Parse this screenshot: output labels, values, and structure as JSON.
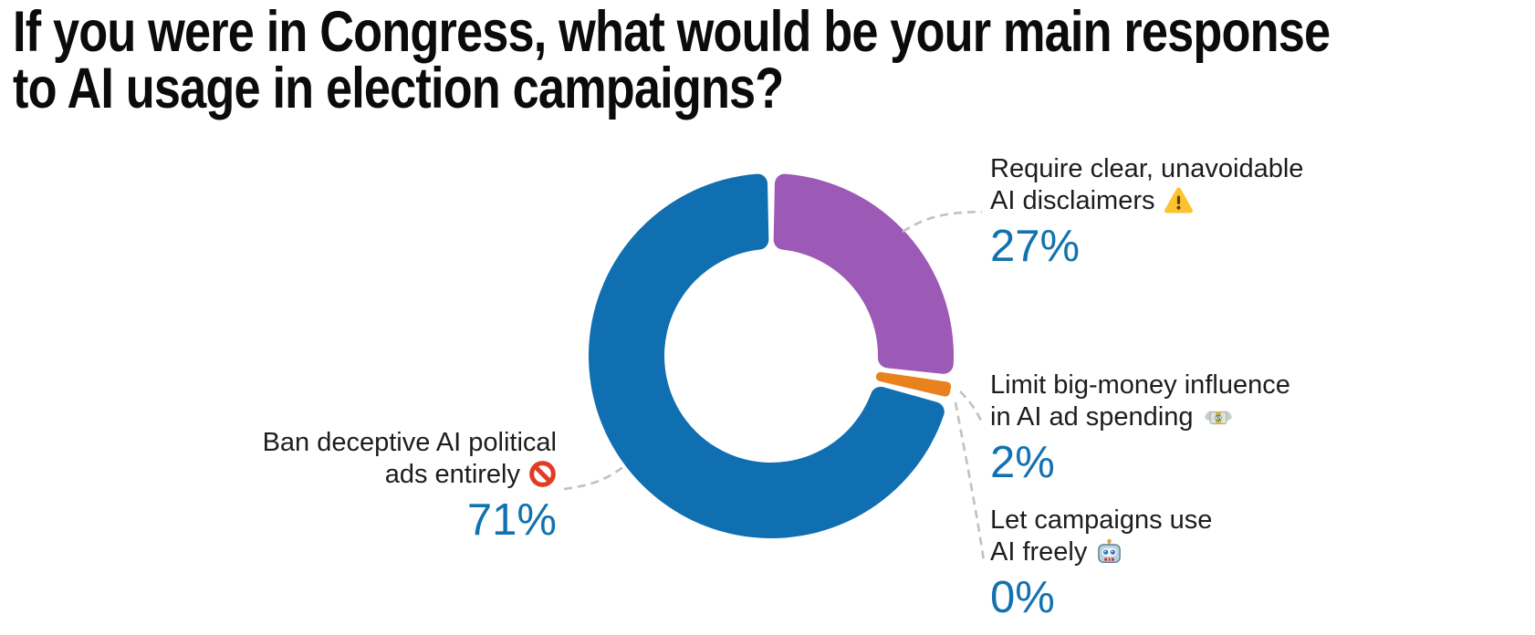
{
  "title": {
    "text": "If you were in Congress, what would be your main response to AI usage in election campaigns?",
    "line1": "If you were in Congress, what would be your main response",
    "line2": "to AI usage in election campaigns?"
  },
  "colors": {
    "slice_blue": "#0f6fb1",
    "slice_purple": "#9c59b5",
    "slice_orange": "#e8821d",
    "percent_text": "#1272b1",
    "label_text": "#1d1d1f",
    "title_text": "#0b0b0b",
    "leader_line": "#c1c1c1",
    "warning_yellow": "#fdc32f",
    "prohibited_red": "#e23d24"
  },
  "chart_data": {
    "type": "pie",
    "subtype": "donut",
    "title": "If you were in Congress, what would be your main response to AI usage in election campaigns?",
    "unit": "%",
    "direction": "clockwise",
    "start_angle_deg": 0,
    "donut_hole_ratio": 0.585,
    "legend_position": "outside-callouts",
    "categories": [
      "Require clear, unavoidable AI disclaimers",
      "Limit big-money influence in AI ad spending",
      "Let campaigns use AI freely",
      "Ban deceptive AI political ads entirely"
    ],
    "values": [
      27,
      2,
      0,
      71
    ],
    "slices": [
      {
        "label": "Require clear, unavoidable AI disclaimers",
        "value": 27,
        "color": "#9c59b5"
      },
      {
        "label": "Limit big-money influence in AI ad spending",
        "value": 2,
        "color": "#e8821d"
      },
      {
        "label": "Let campaigns use AI freely",
        "value": 0,
        "color": "#0f6fb1"
      },
      {
        "label": "Ban deceptive AI political ads entirely",
        "value": 71,
        "color": "#0f6fb1"
      }
    ],
    "annotations": [
      {
        "line1": "Require clear, unavoidable",
        "line2": "AI disclaimers",
        "icon": "warning-icon",
        "pct": "27%"
      },
      {
        "line1": "Limit big-money influence",
        "line2": "in AI ad spending",
        "icon": "money-wings-icon",
        "pct": "2%"
      },
      {
        "line1": "Let campaigns use",
        "line2": "AI freely",
        "icon": "robot-icon",
        "pct": "0%"
      },
      {
        "line1": "Ban deceptive AI political",
        "line2": "ads entirely",
        "icon": "prohibited-icon",
        "pct": "71%"
      }
    ]
  }
}
